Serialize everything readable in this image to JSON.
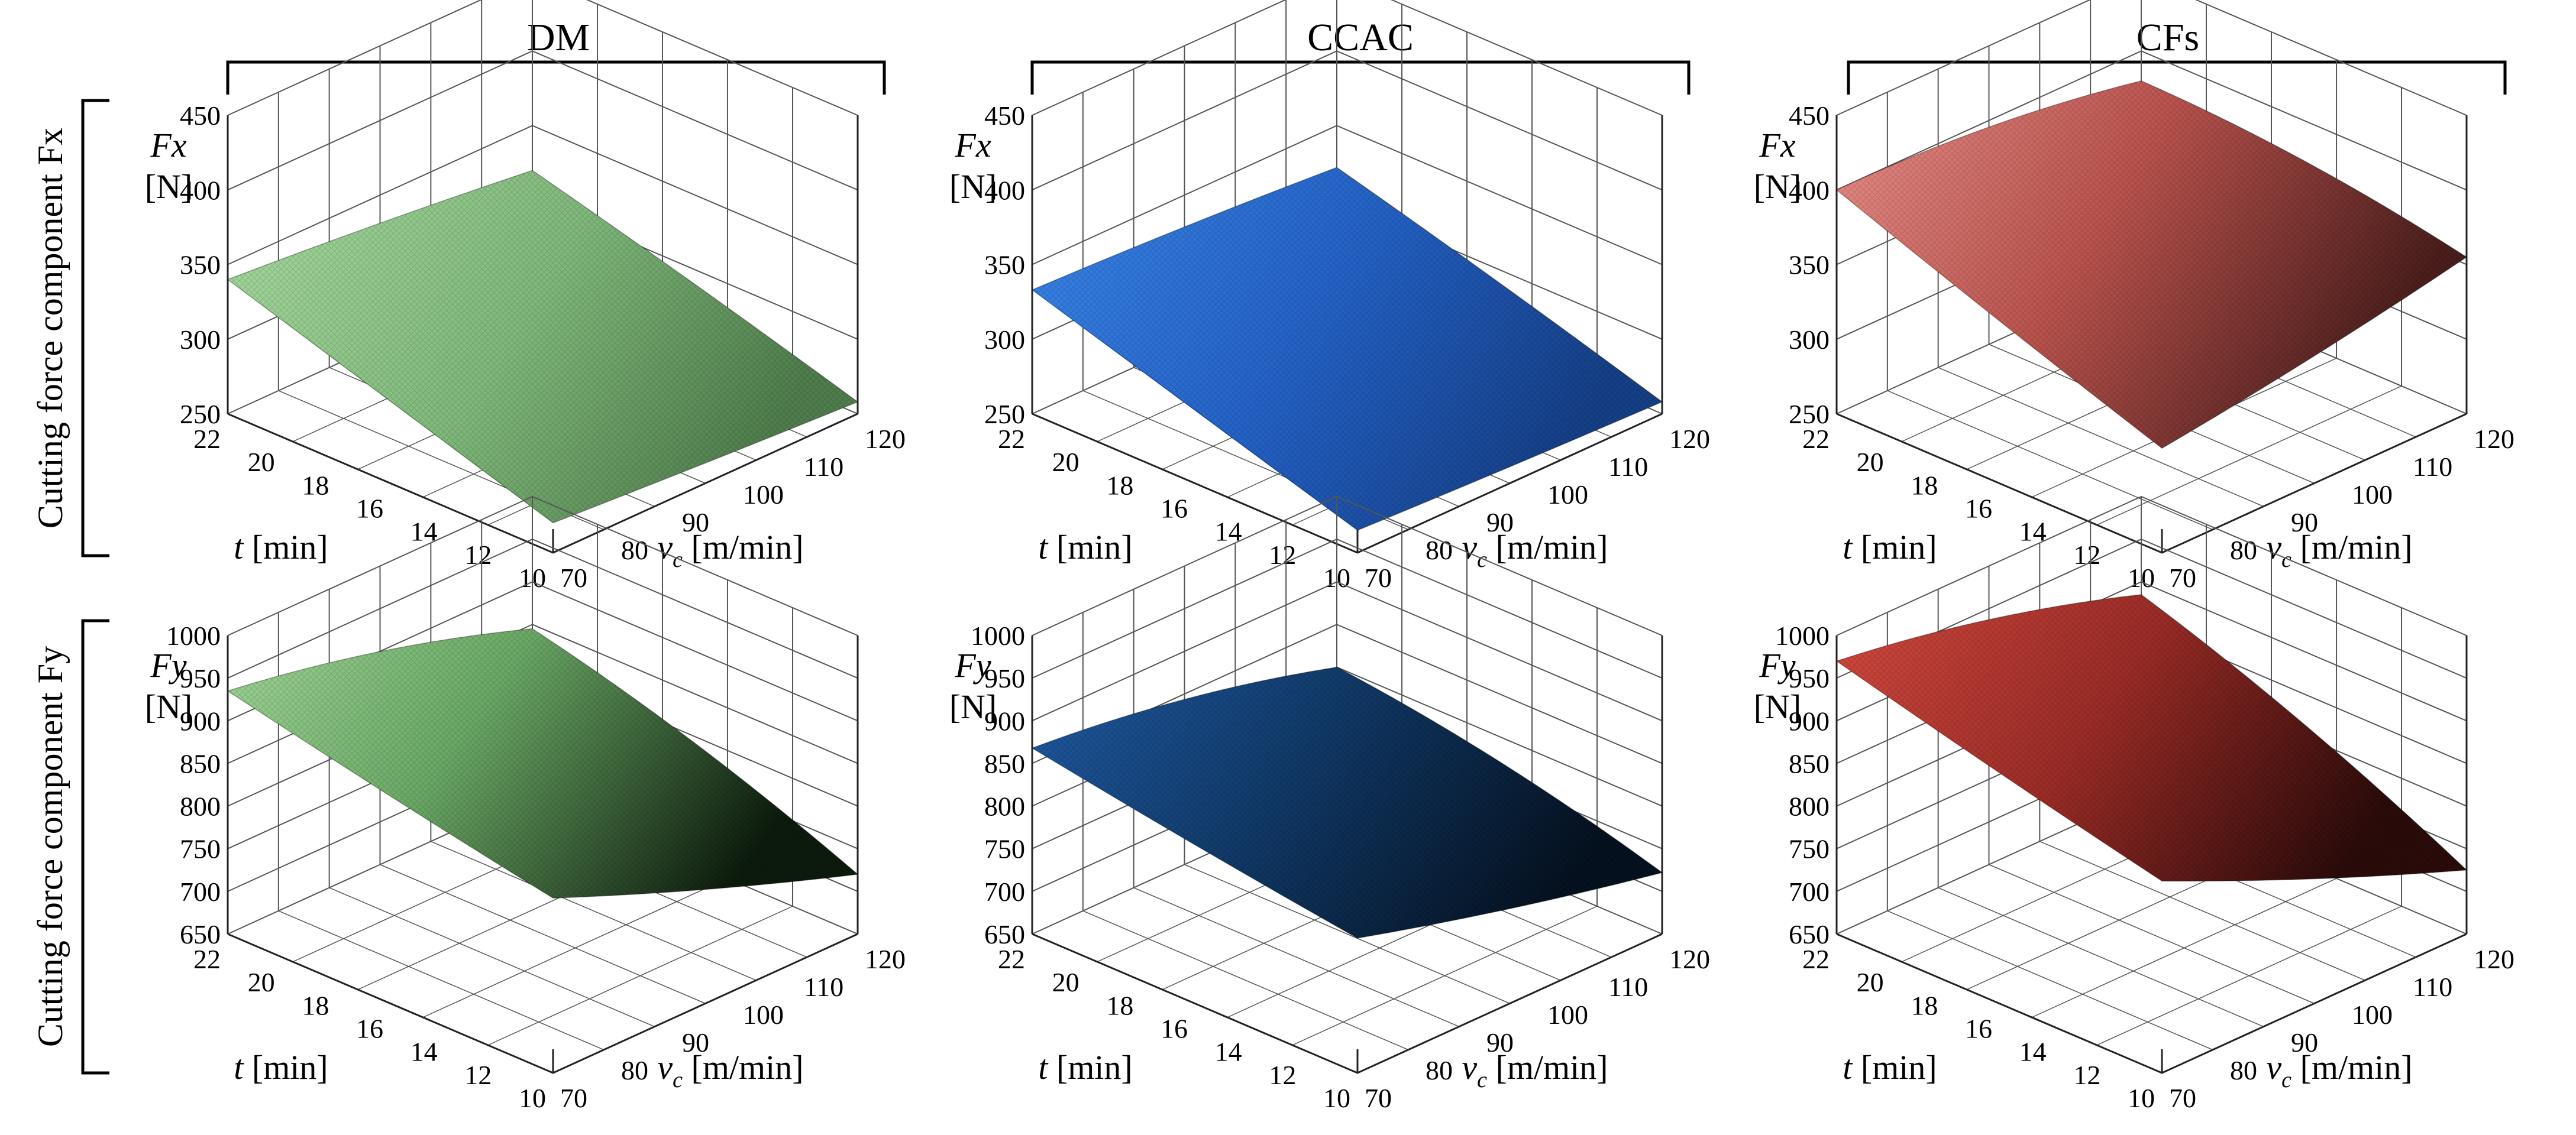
{
  "figure": {
    "column_headers": [
      "DM",
      "CCAC",
      "CFs"
    ],
    "row_labels": [
      "Cutting force component Fx",
      "Cutting force component Fy"
    ]
  },
  "axes": {
    "t_label_var": "t",
    "t_label_unit": "[min]",
    "t_ticks": [
      "22",
      "20",
      "18",
      "16",
      "14",
      "12",
      "10"
    ],
    "vc_label_var": "v",
    "vc_label_sub": "c",
    "vc_label_unit": "[m/min]",
    "vc_ticks": [
      "70",
      "80",
      "90",
      "100",
      "110",
      "120"
    ],
    "fx_label": "Fx",
    "fy_label": "Fy",
    "z_unit": "[N]",
    "fx_ticks": [
      "250",
      "300",
      "350",
      "400",
      "450"
    ],
    "fy_ticks": [
      "650",
      "700",
      "750",
      "800",
      "850",
      "900",
      "950",
      "1000"
    ]
  },
  "colors": {
    "DM": "#8fc98a",
    "CCAC": "#2d6fd0",
    "CFs": "#c85a55",
    "frame": "#555555"
  },
  "chart_data": [
    {
      "type": "surface",
      "row": "Fx",
      "method": "DM",
      "title": "DM",
      "xlabel": "t [min]",
      "ylabel": "vc [m/min]",
      "zlabel": "Fx [N]",
      "x_range": [
        10,
        22
      ],
      "y_range": [
        70,
        120
      ],
      "zlim": [
        250,
        450
      ],
      "corners": {
        "t22_vc70": 340,
        "t10_vc70": 270,
        "t10_vc120": 258,
        "t22_vc120": 320
      }
    },
    {
      "type": "surface",
      "row": "Fx",
      "method": "CCAC",
      "title": "CCAC",
      "xlabel": "t [min]",
      "ylabel": "vc [m/min]",
      "zlabel": "Fx [N]",
      "x_range": [
        10,
        22
      ],
      "y_range": [
        70,
        120
      ],
      "zlim": [
        250,
        450
      ],
      "corners": {
        "t22_vc70": 333,
        "t10_vc70": 265,
        "t10_vc120": 258,
        "t22_vc120": 322
      }
    },
    {
      "type": "surface",
      "row": "Fx",
      "method": "CFs",
      "title": "CFs",
      "xlabel": "t [min]",
      "ylabel": "vc [m/min]",
      "zlabel": "Fx [N]",
      "x_range": [
        10,
        22
      ],
      "y_range": [
        70,
        120
      ],
      "zlim": [
        250,
        450
      ],
      "corners": {
        "t22_vc70": 400,
        "t10_vc70": 320,
        "t10_vc120": 355,
        "t22_vc120": 380
      }
    },
    {
      "type": "surface",
      "row": "Fy",
      "method": "DM",
      "title": "DM",
      "xlabel": "t [min]",
      "ylabel": "vc [m/min]",
      "zlabel": "Fy [N]",
      "x_range": [
        10,
        22
      ],
      "y_range": [
        70,
        120
      ],
      "zlim": [
        650,
        1000
      ],
      "corners": {
        "t22_vc70": 935,
        "t10_vc70": 855,
        "t10_vc120": 720,
        "t22_vc120": 845
      }
    },
    {
      "type": "surface",
      "row": "Fy",
      "method": "CCAC",
      "title": "CCAC",
      "xlabel": "t [min]",
      "ylabel": "vc [m/min]",
      "zlabel": "Fy [N]",
      "x_range": [
        10,
        22
      ],
      "y_range": [
        70,
        120
      ],
      "zlim": [
        650,
        1000
      ],
      "corners": {
        "t22_vc70": 868,
        "t10_vc70": 808,
        "t10_vc120": 722,
        "t22_vc120": 800
      }
    },
    {
      "type": "surface",
      "row": "Fy",
      "method": "CFs",
      "title": "CFs",
      "xlabel": "t [min]",
      "ylabel": "vc [m/min]",
      "zlabel": "Fy [N]",
      "x_range": [
        10,
        22
      ],
      "y_range": [
        70,
        120
      ],
      "zlim": [
        650,
        1000
      ],
      "corners": {
        "t22_vc70": 970,
        "t10_vc70": 875,
        "t10_vc120": 725,
        "t22_vc120": 885
      }
    }
  ]
}
